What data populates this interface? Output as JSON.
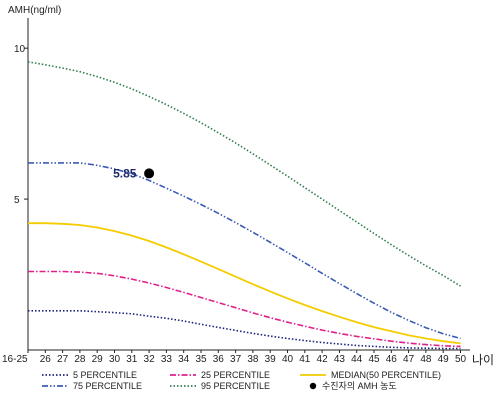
{
  "chart_data": {
    "type": "line",
    "ylabel": "AMH(ng/ml)",
    "xlabel": "나이",
    "ylim": [
      0,
      11
    ],
    "yticks": [
      "5",
      "10"
    ],
    "yticks_values": [
      5,
      10
    ],
    "categories": [
      "16-25",
      "26",
      "27",
      "28",
      "29",
      "30",
      "31",
      "32",
      "33",
      "34",
      "35",
      "36",
      "37",
      "38",
      "39",
      "40",
      "41",
      "42",
      "43",
      "44",
      "45",
      "46",
      "47",
      "48",
      "49",
      "50"
    ],
    "series": [
      {
        "name": "5 PERCENTILE",
        "color": "#1a237e",
        "dash": "dot",
        "values": [
          1.3,
          1.3,
          1.3,
          1.3,
          1.27,
          1.24,
          1.2,
          1.12,
          1.05,
          0.96,
          0.85,
          0.75,
          0.65,
          0.55,
          0.46,
          0.38,
          0.31,
          0.25,
          0.2,
          0.15,
          0.12,
          0.09,
          0.07,
          0.06,
          0.05,
          0.05
        ]
      },
      {
        "name": "25 PERCENTILE",
        "color": "#e0218a",
        "dash": "dashdot",
        "values": [
          2.6,
          2.6,
          2.6,
          2.58,
          2.54,
          2.46,
          2.35,
          2.22,
          2.07,
          1.91,
          1.74,
          1.57,
          1.4,
          1.23,
          1.07,
          0.92,
          0.79,
          0.66,
          0.55,
          0.45,
          0.37,
          0.29,
          0.23,
          0.18,
          0.14,
          0.12
        ]
      },
      {
        "name": "MEDIAN(50 PERCENTILE)",
        "color": "#f5cc00",
        "dash": "solid",
        "values": [
          4.2,
          4.2,
          4.18,
          4.14,
          4.06,
          3.94,
          3.79,
          3.61,
          3.4,
          3.17,
          2.93,
          2.68,
          2.43,
          2.18,
          1.94,
          1.71,
          1.49,
          1.29,
          1.1,
          0.92,
          0.76,
          0.62,
          0.49,
          0.38,
          0.29,
          0.22
        ]
      },
      {
        "name": "75 PERCENTILE",
        "color": "#3b5bb5",
        "dash": "dashdotdot",
        "values": [
          6.2,
          6.2,
          6.2,
          6.2,
          6.12,
          6.0,
          5.84,
          5.62,
          5.36,
          5.1,
          4.82,
          4.53,
          4.22,
          3.9,
          3.57,
          3.23,
          2.89,
          2.54,
          2.2,
          1.87,
          1.55,
          1.25,
          0.98,
          0.74,
          0.54,
          0.38
        ]
      },
      {
        "name": "95 PERCENTILE",
        "color": "#2e7d4a",
        "dash": "dot",
        "values": [
          9.55,
          9.45,
          9.34,
          9.22,
          9.06,
          8.87,
          8.65,
          8.4,
          8.13,
          7.84,
          7.53,
          7.2,
          6.86,
          6.5,
          6.13,
          5.76,
          5.38,
          5.0,
          4.62,
          4.24,
          3.86,
          3.49,
          3.13,
          2.79,
          2.47,
          2.12
        ]
      }
    ],
    "point": {
      "name": "수진자의 AMH 농도",
      "x": "32",
      "y": 5.85,
      "label": "5.85"
    },
    "legend": "bottom",
    "grid": false
  }
}
